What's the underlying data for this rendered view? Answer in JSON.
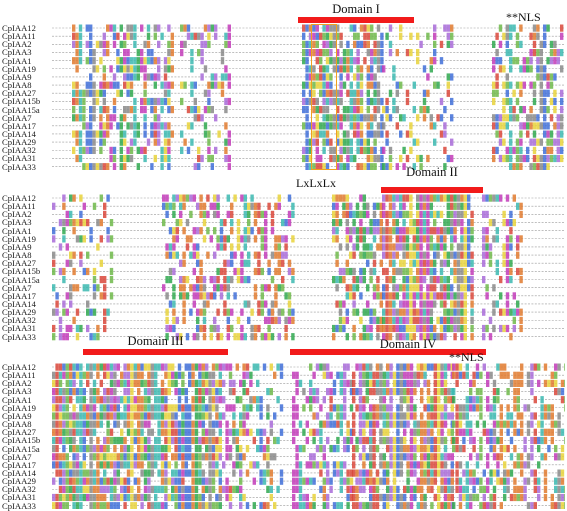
{
  "panels": [
    {
      "sequences": [
        "CpIAA12",
        "CpIAA11",
        "CpIAA2",
        "CpIAA3",
        "CpIAA1",
        "CpIAA19",
        "CpIAA9",
        "CpIAA8",
        "CpIAA27",
        "CpIAA15b",
        "CpIAA15a",
        "CpIAA7",
        "CpIAA17",
        "CpIAA14",
        "CpIAA29",
        "CpIAA32",
        "CpIAA31",
        "CpIAA33"
      ],
      "domains": [
        {
          "label": "Domain I"
        }
      ],
      "annotations": [
        {
          "label": "**NLS"
        },
        {
          "label": "LxLxLx"
        }
      ]
    },
    {
      "sequences": [
        "CpIAA12",
        "CpIAA11",
        "CpIAA2",
        "CpIAA3",
        "CpIAA1",
        "CpIAA19",
        "CpIAA9",
        "CpIAA8",
        "CpIAA27",
        "CpIAA15b",
        "CpIAA15a",
        "CpIAA7",
        "CpIAA17",
        "CpIAA14",
        "CpIAA29",
        "CpIAA32",
        "CpIAA31",
        "CpIAA33"
      ],
      "domains": [
        {
          "label": "Domain II"
        }
      ],
      "annotations": []
    },
    {
      "sequences": [
        "CpIAA12",
        "CpIAA11",
        "CpIAA2",
        "CpIAA3",
        "CpIAA1",
        "CpIAA19",
        "CpIAA9",
        "CpIAA8",
        "CpIAA27",
        "CpIAA15b",
        "CpIAA15a",
        "CpIAA7",
        "CpIAA17",
        "CpIAA14",
        "CpIAA29",
        "CpIAA32",
        "CpIAA31",
        "CpIAA33"
      ],
      "domains": [
        {
          "label": "Domain III"
        },
        {
          "label": "Domain IV"
        }
      ],
      "annotations": [
        {
          "label": "**NLS"
        }
      ]
    }
  ],
  "colors": {
    "domain_bar": "#f21b1b",
    "motif_box": "#f0a020",
    "residue_palette": [
      "#3f6fd8",
      "#6fb84a",
      "#e07a2e",
      "#c23bb8",
      "#e8d23a",
      "#d9463a",
      "#3bb8b0",
      "#8a8a8a",
      "#a86bd8",
      "#2fa84f"
    ]
  }
}
